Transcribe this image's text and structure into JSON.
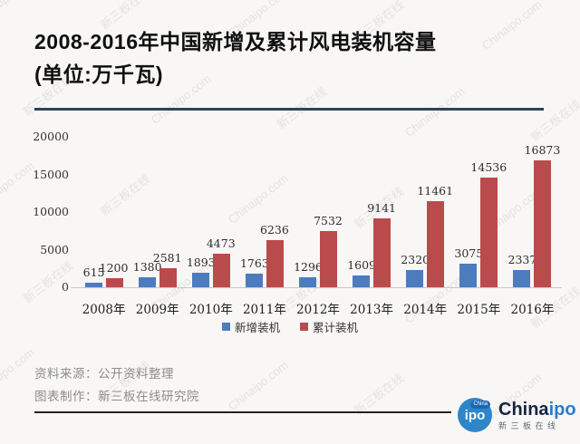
{
  "title": {
    "line1": "2008-2016年中国新增及累计风电装机容量",
    "line2": "(单位:万千瓦)"
  },
  "chart_data": {
    "type": "bar",
    "title": "2008-2016年中国新增及累计风电装机容量",
    "unit": "万千瓦",
    "categories": [
      "2008年",
      "2009年",
      "2010年",
      "2011年",
      "2012年",
      "2013年",
      "2014年",
      "2015年",
      "2016年"
    ],
    "series": [
      {
        "name": "新增装机",
        "color": "#4d7cbe",
        "values": [
          615,
          1380,
          1893,
          1763,
          1296,
          1609,
          2320,
          3075,
          2337
        ]
      },
      {
        "name": "累计装机",
        "color": "#b94b4d",
        "values": [
          1200,
          2581,
          4473,
          6236,
          7532,
          9141,
          11461,
          14536,
          16873
        ]
      }
    ],
    "ylim": [
      0,
      20000
    ],
    "yticks": [
      0,
      5000,
      10000,
      15000,
      20000
    ],
    "grid": false,
    "legend_position": "bottom"
  },
  "footer": {
    "source": "资料来源：公开资料整理",
    "maker": "图表制作：新三板在线研究院"
  },
  "logo": {
    "badge_main": "ipo",
    "badge_tag": "China",
    "brand_part1": "China",
    "brand_part2": "ipo",
    "subtext": "新三板在线"
  },
  "watermark": {
    "texts": [
      "Chinaipo.com",
      "新三板在线"
    ]
  }
}
